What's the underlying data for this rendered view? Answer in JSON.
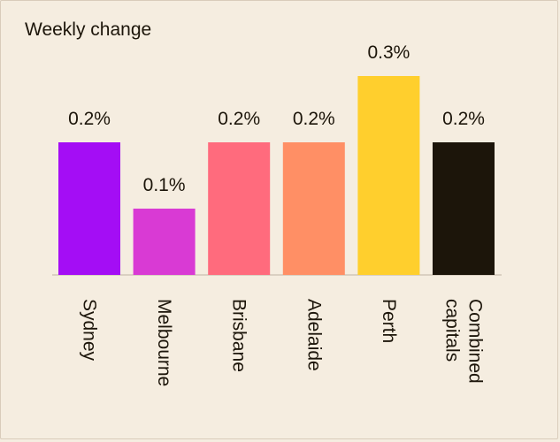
{
  "chart_data": {
    "type": "bar",
    "title": "Weekly change",
    "categories": [
      [
        "Sydney"
      ],
      [
        "Melbourne"
      ],
      [
        "Brisbane"
      ],
      [
        "Adelaide"
      ],
      [
        "Perth"
      ],
      [
        "Combined",
        "capitals"
      ]
    ],
    "values": [
      0.2,
      0.1,
      0.2,
      0.2,
      0.3,
      0.2
    ],
    "value_labels": [
      "0.2%",
      "0.1%",
      "0.2%",
      "0.2%",
      "0.3%",
      "0.2%"
    ],
    "colors": [
      "#a40df5",
      "#d93ad4",
      "#ff6b7d",
      "#ff8f65",
      "#ffcf2d",
      "#1c150a"
    ],
    "ylim": [
      0,
      0.3
    ],
    "grid": false,
    "legend": "none"
  }
}
